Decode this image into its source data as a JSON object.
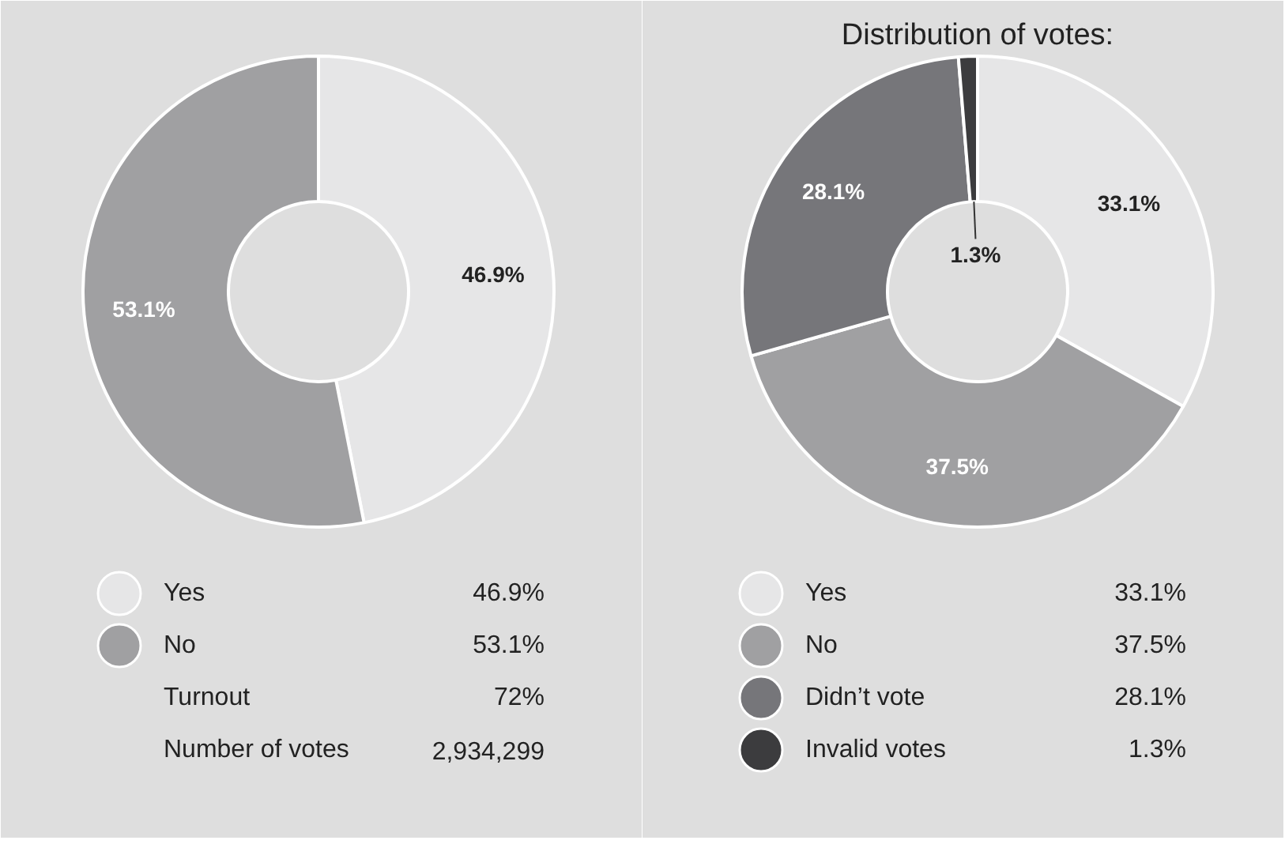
{
  "chart_data": [
    {
      "type": "donut",
      "categories": [
        "Yes",
        "No"
      ],
      "values": [
        46.9,
        53.1
      ],
      "colors": [
        "#e6e6e7",
        "#a0a0a2"
      ],
      "value_labels": [
        "46.9%",
        "53.1%"
      ],
      "legend": "bottom",
      "annotations": [
        "Turnout",
        "72%",
        "Number of votes",
        "2,934,299"
      ]
    },
    {
      "type": "donut",
      "title": "Distribution of votes:",
      "categories": [
        "Yes",
        "No",
        "Didn’t vote",
        "Invalid votes"
      ],
      "values": [
        33.1,
        37.5,
        28.1,
        1.3
      ],
      "colors": [
        "#e6e6e7",
        "#a0a0a2",
        "#76767a",
        "#3c3c3e"
      ],
      "value_labels": [
        "33.1%",
        "37.5%",
        "28.1%",
        "1.3%"
      ],
      "legend": "bottom"
    }
  ]
}
